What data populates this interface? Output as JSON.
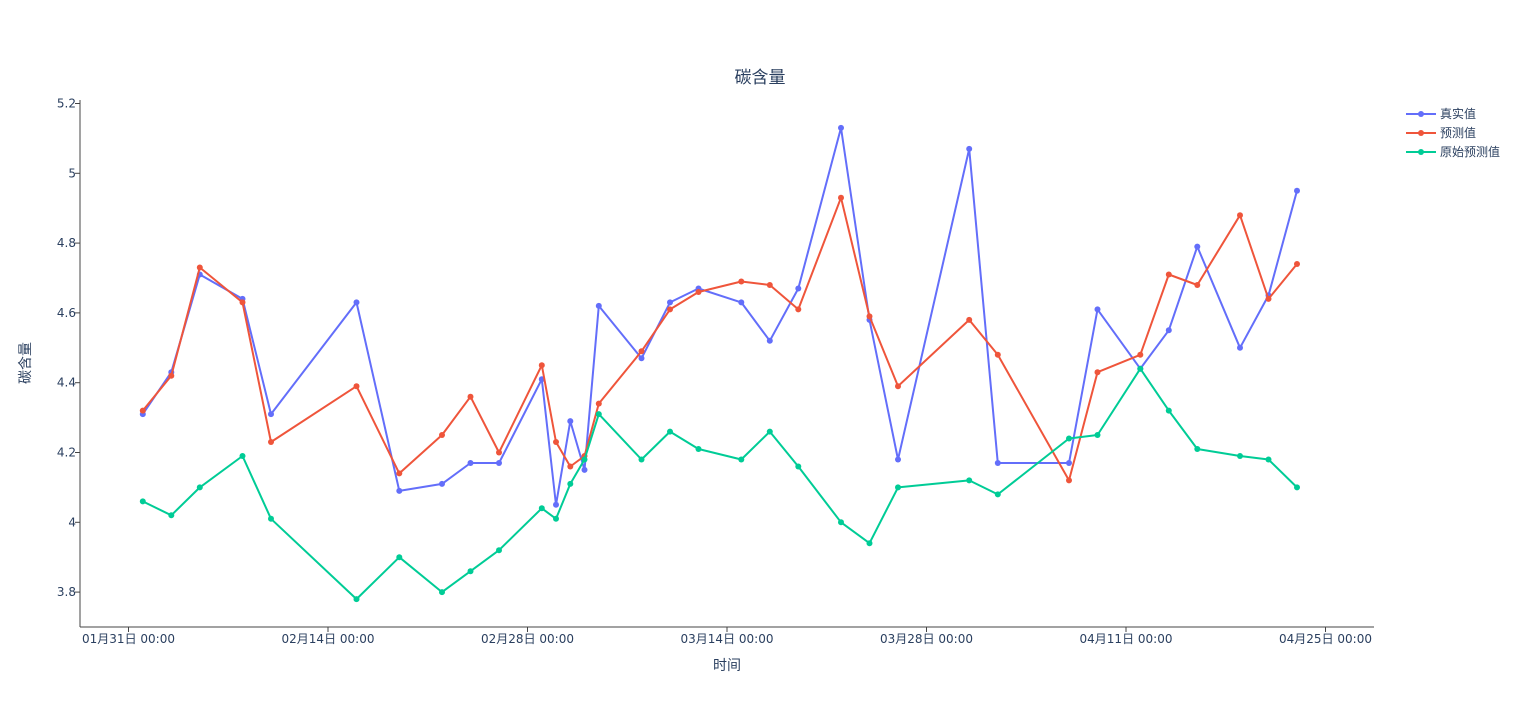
{
  "chart_data": {
    "type": "line",
    "title": "碳含量",
    "xlabel": "时间",
    "ylabel": "碳含量",
    "ylim": [
      3.7,
      5.21
    ],
    "yticks": [
      3.8,
      4,
      4.2,
      4.4,
      4.6,
      4.8,
      5,
      5.2
    ],
    "xrange": [
      "2022-01-31 00:00",
      "2022-04-25 00:00"
    ],
    "xticks": [
      {
        "date": "2022-01-31 00:00",
        "label": "01月31日 00:00"
      },
      {
        "date": "2022-02-14 00:00",
        "label": "02月14日 00:00"
      },
      {
        "date": "2022-02-28 00:00",
        "label": "02月28日 00:00"
      },
      {
        "date": "2022-03-14 00:00",
        "label": "03月14日 00:00"
      },
      {
        "date": "2022-03-28 00:00",
        "label": "03月28日 00:00"
      },
      {
        "date": "2022-04-11 00:00",
        "label": "04月11日 00:00"
      },
      {
        "date": "2022-04-25 00:00",
        "label": "04月25日 00:00"
      }
    ],
    "grid": false,
    "legend_position": "top-right",
    "series": [
      {
        "name": "真实值",
        "color": "#636efa",
        "points": [
          [
            "2022-02-01 00:00",
            4.31
          ],
          [
            "2022-02-03 00:00",
            4.43
          ],
          [
            "2022-02-05 00:00",
            4.71
          ],
          [
            "2022-02-08 00:00",
            4.64
          ],
          [
            "2022-02-10 00:00",
            4.31
          ],
          [
            "2022-02-16 00:00",
            4.63
          ],
          [
            "2022-02-19 00:00",
            4.09
          ],
          [
            "2022-02-22 00:00",
            4.11
          ],
          [
            "2022-02-24 00:00",
            4.17
          ],
          [
            "2022-02-26 00:00",
            4.17
          ],
          [
            "2022-03-01 00:00",
            4.41
          ],
          [
            "2022-03-02 00:00",
            4.05
          ],
          [
            "2022-03-03 00:00",
            4.29
          ],
          [
            "2022-03-04 00:00",
            4.15
          ],
          [
            "2022-03-05 00:00",
            4.62
          ],
          [
            "2022-03-08 00:00",
            4.47
          ],
          [
            "2022-03-10 00:00",
            4.63
          ],
          [
            "2022-03-12 00:00",
            4.67
          ],
          [
            "2022-03-15 00:00",
            4.63
          ],
          [
            "2022-03-17 00:00",
            4.52
          ],
          [
            "2022-03-19 00:00",
            4.67
          ],
          [
            "2022-03-22 00:00",
            5.13
          ],
          [
            "2022-03-24 00:00",
            4.58
          ],
          [
            "2022-03-26 00:00",
            4.18
          ],
          [
            "2022-03-31 00:00",
            5.07
          ],
          [
            "2022-04-02 00:00",
            4.17
          ],
          [
            "2022-04-07 00:00",
            4.17
          ],
          [
            "2022-04-09 00:00",
            4.61
          ],
          [
            "2022-04-12 00:00",
            4.44
          ],
          [
            "2022-04-14 00:00",
            4.55
          ],
          [
            "2022-04-16 00:00",
            4.79
          ],
          [
            "2022-04-19 00:00",
            4.5
          ],
          [
            "2022-04-21 00:00",
            4.65
          ],
          [
            "2022-04-23 00:00",
            4.95
          ]
        ]
      },
      {
        "name": "预测值",
        "color": "#ef553b",
        "points": [
          [
            "2022-02-01 00:00",
            4.32
          ],
          [
            "2022-02-03 00:00",
            4.42
          ],
          [
            "2022-02-05 00:00",
            4.73
          ],
          [
            "2022-02-08 00:00",
            4.63
          ],
          [
            "2022-02-10 00:00",
            4.23
          ],
          [
            "2022-02-16 00:00",
            4.39
          ],
          [
            "2022-02-19 00:00",
            4.14
          ],
          [
            "2022-02-22 00:00",
            4.25
          ],
          [
            "2022-02-24 00:00",
            4.36
          ],
          [
            "2022-02-26 00:00",
            4.2
          ],
          [
            "2022-03-01 00:00",
            4.45
          ],
          [
            "2022-03-02 00:00",
            4.23
          ],
          [
            "2022-03-03 00:00",
            4.16
          ],
          [
            "2022-03-04 00:00",
            4.19
          ],
          [
            "2022-03-05 00:00",
            4.34
          ],
          [
            "2022-03-08 00:00",
            4.49
          ],
          [
            "2022-03-10 00:00",
            4.61
          ],
          [
            "2022-03-12 00:00",
            4.66
          ],
          [
            "2022-03-15 00:00",
            4.69
          ],
          [
            "2022-03-17 00:00",
            4.68
          ],
          [
            "2022-03-19 00:00",
            4.61
          ],
          [
            "2022-03-22 00:00",
            4.93
          ],
          [
            "2022-03-24 00:00",
            4.59
          ],
          [
            "2022-03-26 00:00",
            4.39
          ],
          [
            "2022-03-31 00:00",
            4.58
          ],
          [
            "2022-04-02 00:00",
            4.48
          ],
          [
            "2022-04-07 00:00",
            4.12
          ],
          [
            "2022-04-09 00:00",
            4.43
          ],
          [
            "2022-04-12 00:00",
            4.48
          ],
          [
            "2022-04-14 00:00",
            4.71
          ],
          [
            "2022-04-16 00:00",
            4.68
          ],
          [
            "2022-04-19 00:00",
            4.88
          ],
          [
            "2022-04-21 00:00",
            4.64
          ],
          [
            "2022-04-23 00:00",
            4.74
          ]
        ]
      },
      {
        "name": "原始预测值",
        "color": "#00cc96",
        "points": [
          [
            "2022-02-01 00:00",
            4.06
          ],
          [
            "2022-02-03 00:00",
            4.02
          ],
          [
            "2022-02-05 00:00",
            4.1
          ],
          [
            "2022-02-08 00:00",
            4.19
          ],
          [
            "2022-02-10 00:00",
            4.01
          ],
          [
            "2022-02-16 00:00",
            3.78
          ],
          [
            "2022-02-19 00:00",
            3.9
          ],
          [
            "2022-02-22 00:00",
            3.8
          ],
          [
            "2022-02-24 00:00",
            3.86
          ],
          [
            "2022-02-26 00:00",
            3.92
          ],
          [
            "2022-03-01 00:00",
            4.04
          ],
          [
            "2022-03-02 00:00",
            4.01
          ],
          [
            "2022-03-03 00:00",
            4.11
          ],
          [
            "2022-03-04 00:00",
            4.18
          ],
          [
            "2022-03-05 00:00",
            4.31
          ],
          [
            "2022-03-08 00:00",
            4.18
          ],
          [
            "2022-03-10 00:00",
            4.26
          ],
          [
            "2022-03-12 00:00",
            4.21
          ],
          [
            "2022-03-15 00:00",
            4.18
          ],
          [
            "2022-03-17 00:00",
            4.26
          ],
          [
            "2022-03-19 00:00",
            4.16
          ],
          [
            "2022-03-22 00:00",
            4.0
          ],
          [
            "2022-03-24 00:00",
            3.94
          ],
          [
            "2022-03-26 00:00",
            4.1
          ],
          [
            "2022-03-31 00:00",
            4.12
          ],
          [
            "2022-04-02 00:00",
            4.08
          ],
          [
            "2022-04-07 00:00",
            4.24
          ],
          [
            "2022-04-09 00:00",
            4.25
          ],
          [
            "2022-04-12 00:00",
            4.44
          ],
          [
            "2022-04-14 00:00",
            4.32
          ],
          [
            "2022-04-16 00:00",
            4.21
          ],
          [
            "2022-04-19 00:00",
            4.19
          ],
          [
            "2022-04-21 00:00",
            4.18
          ],
          [
            "2022-04-23 00:00",
            4.1
          ]
        ]
      }
    ]
  }
}
